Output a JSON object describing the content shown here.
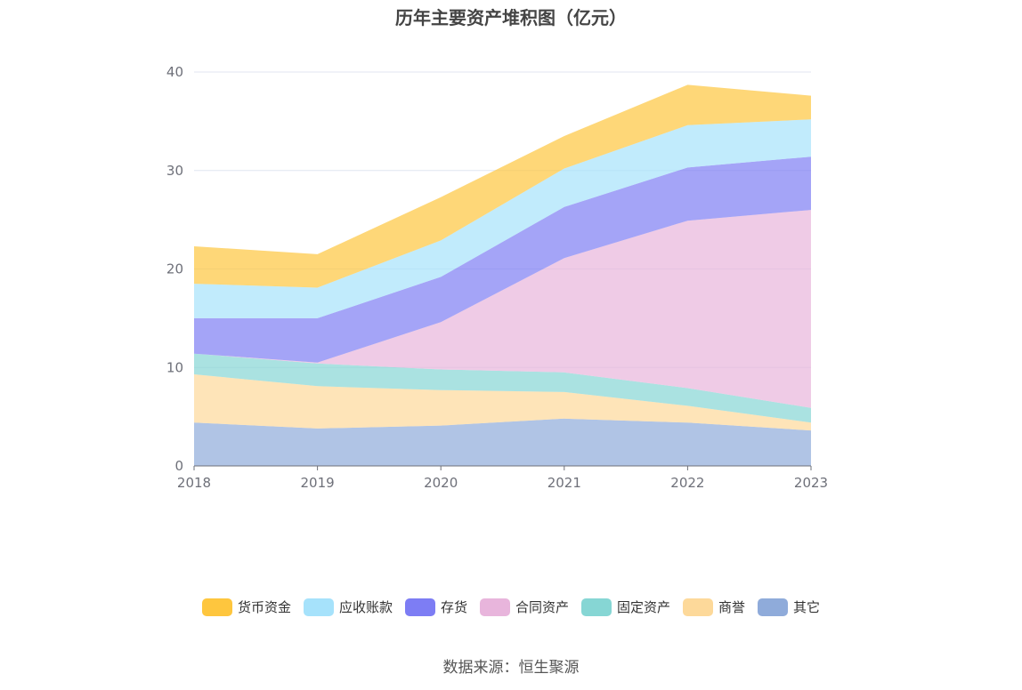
{
  "chart_data": {
    "type": "area",
    "stacked": true,
    "title": "历年主要资产堆积图（亿元）",
    "categories": [
      "2018",
      "2019",
      "2020",
      "2021",
      "2022",
      "2023"
    ],
    "ylim": [
      0,
      40
    ],
    "yticks": [
      0,
      10,
      20,
      30,
      40
    ],
    "grid": true,
    "legend_position": "bottom",
    "series": [
      {
        "name": "其它",
        "color": "#8fabda",
        "values": [
          4.4,
          3.8,
          4.1,
          4.8,
          4.4,
          3.6
        ]
      },
      {
        "name": "商誉",
        "color": "#fdd99a",
        "values": [
          4.9,
          4.3,
          3.6,
          2.7,
          1.7,
          0.8
        ]
      },
      {
        "name": "固定资产",
        "color": "#86d6d4",
        "values": [
          2.1,
          2.3,
          2.1,
          2.0,
          1.8,
          1.5
        ]
      },
      {
        "name": "合同资产",
        "color": "#e8b5dc",
        "values": [
          0.0,
          0.1,
          4.8,
          11.6,
          17.0,
          20.1
        ]
      },
      {
        "name": "存货",
        "color": "#7d7df4",
        "values": [
          3.6,
          4.5,
          4.6,
          5.2,
          5.4,
          5.4
        ]
      },
      {
        "name": "应收账款",
        "color": "#a6e2fb",
        "values": [
          3.5,
          3.1,
          3.7,
          3.9,
          4.3,
          3.8
        ]
      },
      {
        "name": "货币资金",
        "color": "#fec63e",
        "values": [
          3.8,
          3.4,
          4.4,
          3.3,
          4.1,
          2.4
        ]
      }
    ]
  },
  "legend_order": [
    "货币资金",
    "应收账款",
    "存货",
    "合同资产",
    "固定资产",
    "商誉",
    "其它"
  ],
  "source_text": "数据来源：恒生聚源"
}
